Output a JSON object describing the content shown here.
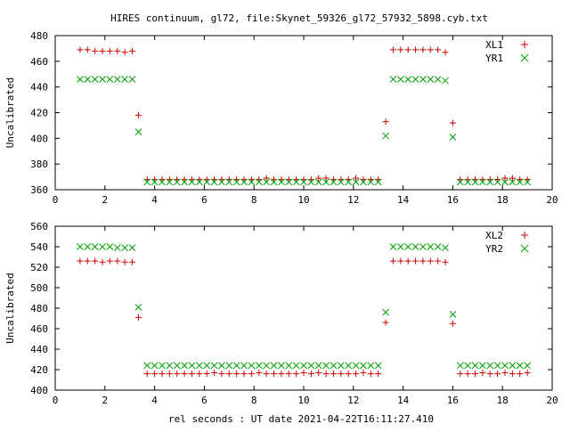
{
  "title": "HIRES continuum, gl72, file:Skynet_59326_gl72_57932_5898.cyb.txt",
  "xlabel": "rel seconds : UT date 2021-04-22T16:11:27.410",
  "chart_data": [
    {
      "type": "scatter",
      "ylabel": "Uncalibrated",
      "xlim": [
        0,
        20
      ],
      "ylim": [
        360,
        480
      ],
      "xticks": [
        "0",
        "2",
        "4",
        "6",
        "8",
        "10",
        "12",
        "14",
        "16",
        "18",
        "20"
      ],
      "yticks": [
        "360",
        "380",
        "400",
        "420",
        "440",
        "460",
        "480"
      ],
      "legend_position": "top-right",
      "series": [
        {
          "name": "XL1",
          "marker": "plus",
          "color": "#cc0000",
          "points": [
            [
              1.0,
              469
            ],
            [
              1.3,
              469
            ],
            [
              1.6,
              468
            ],
            [
              1.9,
              468
            ],
            [
              2.2,
              468
            ],
            [
              2.5,
              468
            ],
            [
              2.8,
              467
            ],
            [
              3.1,
              468
            ],
            [
              3.35,
              418
            ],
            [
              3.7,
              368
            ],
            [
              4.0,
              368
            ],
            [
              4.3,
              368
            ],
            [
              4.6,
              368
            ],
            [
              4.9,
              368
            ],
            [
              5.2,
              368
            ],
            [
              5.5,
              368
            ],
            [
              5.8,
              368
            ],
            [
              6.1,
              368
            ],
            [
              6.4,
              368
            ],
            [
              6.7,
              368
            ],
            [
              7.0,
              368
            ],
            [
              7.3,
              368
            ],
            [
              7.6,
              368
            ],
            [
              7.9,
              368
            ],
            [
              8.2,
              368
            ],
            [
              8.5,
              369
            ],
            [
              8.8,
              368
            ],
            [
              9.1,
              368
            ],
            [
              9.4,
              368
            ],
            [
              9.7,
              368
            ],
            [
              10.0,
              368
            ],
            [
              10.3,
              368
            ],
            [
              10.6,
              369
            ],
            [
              10.9,
              369
            ],
            [
              11.2,
              368
            ],
            [
              11.5,
              368
            ],
            [
              11.8,
              368
            ],
            [
              12.1,
              369
            ],
            [
              12.4,
              368
            ],
            [
              12.7,
              368
            ],
            [
              13.0,
              368
            ],
            [
              13.3,
              413
            ],
            [
              13.6,
              469
            ],
            [
              13.9,
              469
            ],
            [
              14.2,
              469
            ],
            [
              14.5,
              469
            ],
            [
              14.8,
              469
            ],
            [
              15.1,
              469
            ],
            [
              15.4,
              469
            ],
            [
              15.7,
              467
            ],
            [
              16.0,
              412
            ],
            [
              16.3,
              368
            ],
            [
              16.6,
              368
            ],
            [
              16.9,
              368
            ],
            [
              17.2,
              368
            ],
            [
              17.5,
              368
            ],
            [
              17.8,
              368
            ],
            [
              18.1,
              369
            ],
            [
              18.4,
              369
            ],
            [
              18.7,
              368
            ],
            [
              19.0,
              368
            ]
          ]
        },
        {
          "name": "YR1",
          "marker": "cross",
          "color": "#00a000",
          "points": [
            [
              1.0,
              446
            ],
            [
              1.3,
              446
            ],
            [
              1.6,
              446
            ],
            [
              1.9,
              446
            ],
            [
              2.2,
              446
            ],
            [
              2.5,
              446
            ],
            [
              2.8,
              446
            ],
            [
              3.1,
              446
            ],
            [
              3.35,
              405
            ],
            [
              3.7,
              366
            ],
            [
              4.0,
              366
            ],
            [
              4.3,
              366
            ],
            [
              4.6,
              366
            ],
            [
              4.9,
              366
            ],
            [
              5.2,
              366
            ],
            [
              5.5,
              366
            ],
            [
              5.8,
              366
            ],
            [
              6.1,
              366
            ],
            [
              6.4,
              366
            ],
            [
              6.7,
              366
            ],
            [
              7.0,
              366
            ],
            [
              7.3,
              366
            ],
            [
              7.6,
              366
            ],
            [
              7.9,
              366
            ],
            [
              8.2,
              366
            ],
            [
              8.5,
              366
            ],
            [
              8.8,
              366
            ],
            [
              9.1,
              366
            ],
            [
              9.4,
              366
            ],
            [
              9.7,
              366
            ],
            [
              10.0,
              366
            ],
            [
              10.3,
              366
            ],
            [
              10.6,
              366
            ],
            [
              10.9,
              366
            ],
            [
              11.2,
              366
            ],
            [
              11.5,
              366
            ],
            [
              11.8,
              366
            ],
            [
              12.1,
              366
            ],
            [
              12.4,
              366
            ],
            [
              12.7,
              366
            ],
            [
              13.0,
              366
            ],
            [
              13.3,
              402
            ],
            [
              13.6,
              446
            ],
            [
              13.9,
              446
            ],
            [
              14.2,
              446
            ],
            [
              14.5,
              446
            ],
            [
              14.8,
              446
            ],
            [
              15.1,
              446
            ],
            [
              15.4,
              446
            ],
            [
              15.7,
              445
            ],
            [
              16.0,
              401
            ],
            [
              16.3,
              366
            ],
            [
              16.6,
              366
            ],
            [
              16.9,
              366
            ],
            [
              17.2,
              366
            ],
            [
              17.5,
              366
            ],
            [
              17.8,
              366
            ],
            [
              18.1,
              366
            ],
            [
              18.4,
              366
            ],
            [
              18.7,
              366
            ],
            [
              19.0,
              366
            ]
          ]
        }
      ]
    },
    {
      "type": "scatter",
      "ylabel": "Uncalibrated",
      "xlim": [
        0,
        20
      ],
      "ylim": [
        400,
        560
      ],
      "xticks": [
        "0",
        "2",
        "4",
        "6",
        "8",
        "10",
        "12",
        "14",
        "16",
        "18",
        "20"
      ],
      "yticks": [
        "400",
        "420",
        "440",
        "460",
        "480",
        "500",
        "520",
        "540",
        "560"
      ],
      "legend_position": "top-right",
      "series": [
        {
          "name": "XL2",
          "marker": "plus",
          "color": "#cc0000",
          "points": [
            [
              1.0,
              526
            ],
            [
              1.3,
              526
            ],
            [
              1.6,
              526
            ],
            [
              1.9,
              525
            ],
            [
              2.2,
              526
            ],
            [
              2.5,
              526
            ],
            [
              2.8,
              525
            ],
            [
              3.1,
              525
            ],
            [
              3.35,
              471
            ],
            [
              3.7,
              416
            ],
            [
              4.0,
              416
            ],
            [
              4.3,
              416
            ],
            [
              4.6,
              416
            ],
            [
              4.9,
              416
            ],
            [
              5.2,
              416
            ],
            [
              5.5,
              416
            ],
            [
              5.8,
              416
            ],
            [
              6.1,
              416
            ],
            [
              6.4,
              417
            ],
            [
              6.7,
              416
            ],
            [
              7.0,
              416
            ],
            [
              7.3,
              416
            ],
            [
              7.6,
              416
            ],
            [
              7.9,
              416
            ],
            [
              8.2,
              417
            ],
            [
              8.5,
              416
            ],
            [
              8.8,
              416
            ],
            [
              9.1,
              416
            ],
            [
              9.4,
              416
            ],
            [
              9.7,
              416
            ],
            [
              10.0,
              417
            ],
            [
              10.3,
              416
            ],
            [
              10.6,
              417
            ],
            [
              10.9,
              416
            ],
            [
              11.2,
              416
            ],
            [
              11.5,
              416
            ],
            [
              11.8,
              416
            ],
            [
              12.1,
              416
            ],
            [
              12.4,
              417
            ],
            [
              12.7,
              416
            ],
            [
              13.0,
              416
            ],
            [
              13.3,
              466
            ],
            [
              13.6,
              526
            ],
            [
              13.9,
              526
            ],
            [
              14.2,
              526
            ],
            [
              14.5,
              526
            ],
            [
              14.8,
              526
            ],
            [
              15.1,
              526
            ],
            [
              15.4,
              526
            ],
            [
              15.7,
              525
            ],
            [
              16.0,
              465
            ],
            [
              16.3,
              416
            ],
            [
              16.6,
              416
            ],
            [
              16.9,
              416
            ],
            [
              17.2,
              417
            ],
            [
              17.5,
              416
            ],
            [
              17.8,
              416
            ],
            [
              18.1,
              417
            ],
            [
              18.4,
              416
            ],
            [
              18.7,
              416
            ],
            [
              19.0,
              417
            ]
          ]
        },
        {
          "name": "YR2",
          "marker": "cross",
          "color": "#00a000",
          "points": [
            [
              1.0,
              540
            ],
            [
              1.3,
              540
            ],
            [
              1.6,
              540
            ],
            [
              1.9,
              540
            ],
            [
              2.2,
              540
            ],
            [
              2.5,
              539
            ],
            [
              2.8,
              539
            ],
            [
              3.1,
              539
            ],
            [
              3.35,
              481
            ],
            [
              3.7,
              424
            ],
            [
              4.0,
              424
            ],
            [
              4.3,
              424
            ],
            [
              4.6,
              424
            ],
            [
              4.9,
              424
            ],
            [
              5.2,
              424
            ],
            [
              5.5,
              424
            ],
            [
              5.8,
              424
            ],
            [
              6.1,
              424
            ],
            [
              6.4,
              424
            ],
            [
              6.7,
              424
            ],
            [
              7.0,
              424
            ],
            [
              7.3,
              424
            ],
            [
              7.6,
              424
            ],
            [
              7.9,
              424
            ],
            [
              8.2,
              424
            ],
            [
              8.5,
              424
            ],
            [
              8.8,
              424
            ],
            [
              9.1,
              424
            ],
            [
              9.4,
              424
            ],
            [
              9.7,
              424
            ],
            [
              10.0,
              424
            ],
            [
              10.3,
              424
            ],
            [
              10.6,
              424
            ],
            [
              10.9,
              424
            ],
            [
              11.2,
              424
            ],
            [
              11.5,
              424
            ],
            [
              11.8,
              424
            ],
            [
              12.1,
              424
            ],
            [
              12.4,
              424
            ],
            [
              12.7,
              424
            ],
            [
              13.0,
              424
            ],
            [
              13.3,
              476
            ],
            [
              13.6,
              540
            ],
            [
              13.9,
              540
            ],
            [
              14.2,
              540
            ],
            [
              14.5,
              540
            ],
            [
              14.8,
              540
            ],
            [
              15.1,
              540
            ],
            [
              15.4,
              540
            ],
            [
              15.7,
              539
            ],
            [
              16.0,
              474
            ],
            [
              16.3,
              424
            ],
            [
              16.6,
              424
            ],
            [
              16.9,
              424
            ],
            [
              17.2,
              424
            ],
            [
              17.5,
              424
            ],
            [
              17.8,
              424
            ],
            [
              18.1,
              424
            ],
            [
              18.4,
              424
            ],
            [
              18.7,
              424
            ],
            [
              19.0,
              424
            ]
          ]
        }
      ]
    }
  ]
}
